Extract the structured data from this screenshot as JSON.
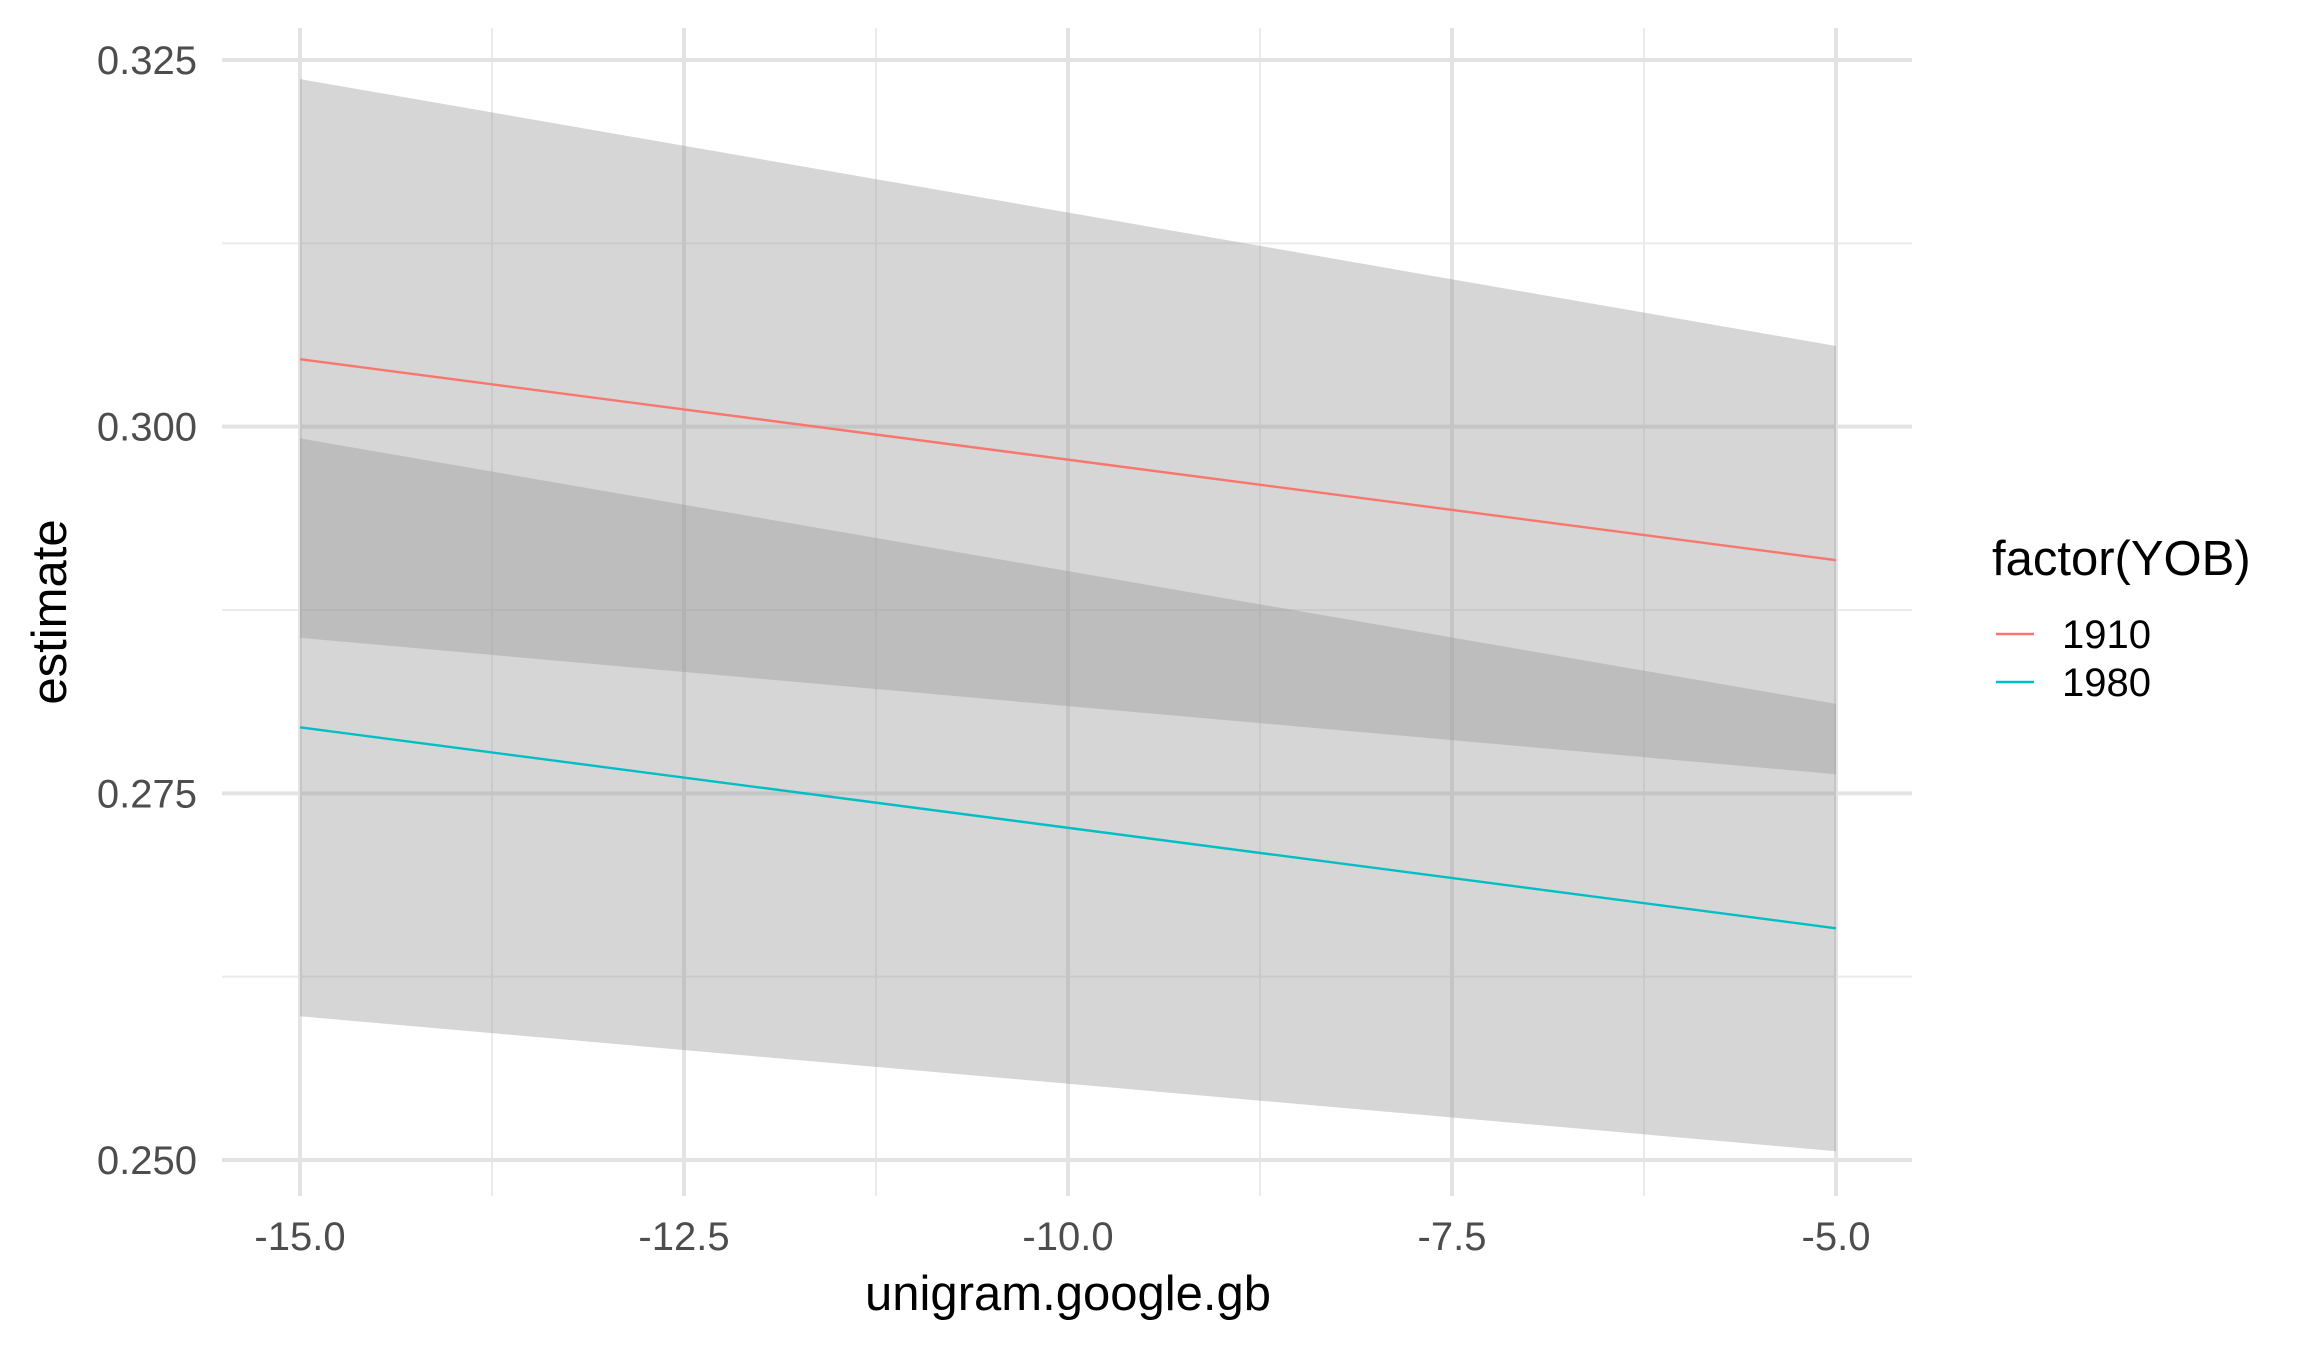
{
  "chart_data": {
    "type": "line",
    "title": "",
    "xlabel": "unigram.google.gb",
    "ylabel": "estimate",
    "xlim": [
      -15.0,
      -5.0
    ],
    "ylim": [
      0.25,
      0.325
    ],
    "x_ticks": [
      -15.0,
      -12.5,
      -10.0,
      -7.5,
      -5.0
    ],
    "x_tick_labels": [
      "-15.0",
      "-12.5",
      "-10.0",
      "-7.5",
      "-5.0"
    ],
    "y_ticks": [
      0.25,
      0.275,
      0.3,
      0.325
    ],
    "y_tick_labels": [
      "0.250",
      "0.275",
      "0.300",
      "0.325"
    ],
    "grid": true,
    "legend": {
      "title": "factor(YOB)",
      "position": "right"
    },
    "series": [
      {
        "name": "1910",
        "color": "#F8766D",
        "x": [
          -15.0,
          -5.0
        ],
        "y": [
          0.3046,
          0.2909
        ],
        "ci_lower": [
          0.2856,
          0.2763
        ],
        "ci_upper": [
          0.3237,
          0.3055
        ]
      },
      {
        "name": "1980",
        "color": "#00BFC4",
        "x": [
          -15.0,
          -5.0
        ],
        "y": [
          0.2795,
          0.2658
        ],
        "ci_lower": [
          0.2598,
          0.2506
        ],
        "ci_upper": [
          0.2992,
          0.2811
        ]
      }
    ],
    "ribbon_color": "#999999"
  }
}
